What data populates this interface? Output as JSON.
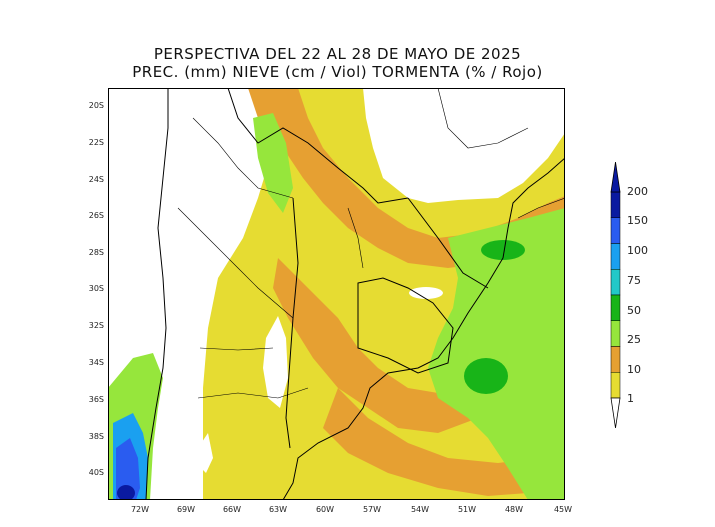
{
  "title": {
    "line1": "PERSPECTIVA DEL 22 AL 28 DE MAYO DE 2025",
    "line2": "PREC. (mm) NIEVE (cm / Viol) TORMENTA (% / Rojo)"
  },
  "axes": {
    "lat_labels": [
      "20S",
      "22S",
      "24S",
      "26S",
      "28S",
      "30S",
      "32S",
      "34S",
      "36S",
      "38S",
      "40S"
    ],
    "lon_labels": [
      "72W",
      "69W",
      "66W",
      "63W",
      "60W",
      "57W",
      "54W",
      "51W",
      "48W",
      "45W"
    ]
  },
  "colorbar": {
    "levels": [
      "200",
      "150",
      "100",
      "75",
      "50",
      "25",
      "10",
      "1"
    ],
    "colors": [
      "#0a1aa0",
      "#2a5cf0",
      "#1aa0f0",
      "#22c8c8",
      "#18b418",
      "#96e63c",
      "#e6a032",
      "#e6dc32"
    ]
  },
  "map": {
    "colors": {
      "dry": "#ffffff",
      "light": "#e6dc32",
      "moderate": "#e6a032",
      "heavy": "#96e63c",
      "very_heavy": "#18b418",
      "snow1": "#1aa0f0",
      "snow2": "#2a5cf0",
      "snow3": "#0a1aa0"
    }
  }
}
